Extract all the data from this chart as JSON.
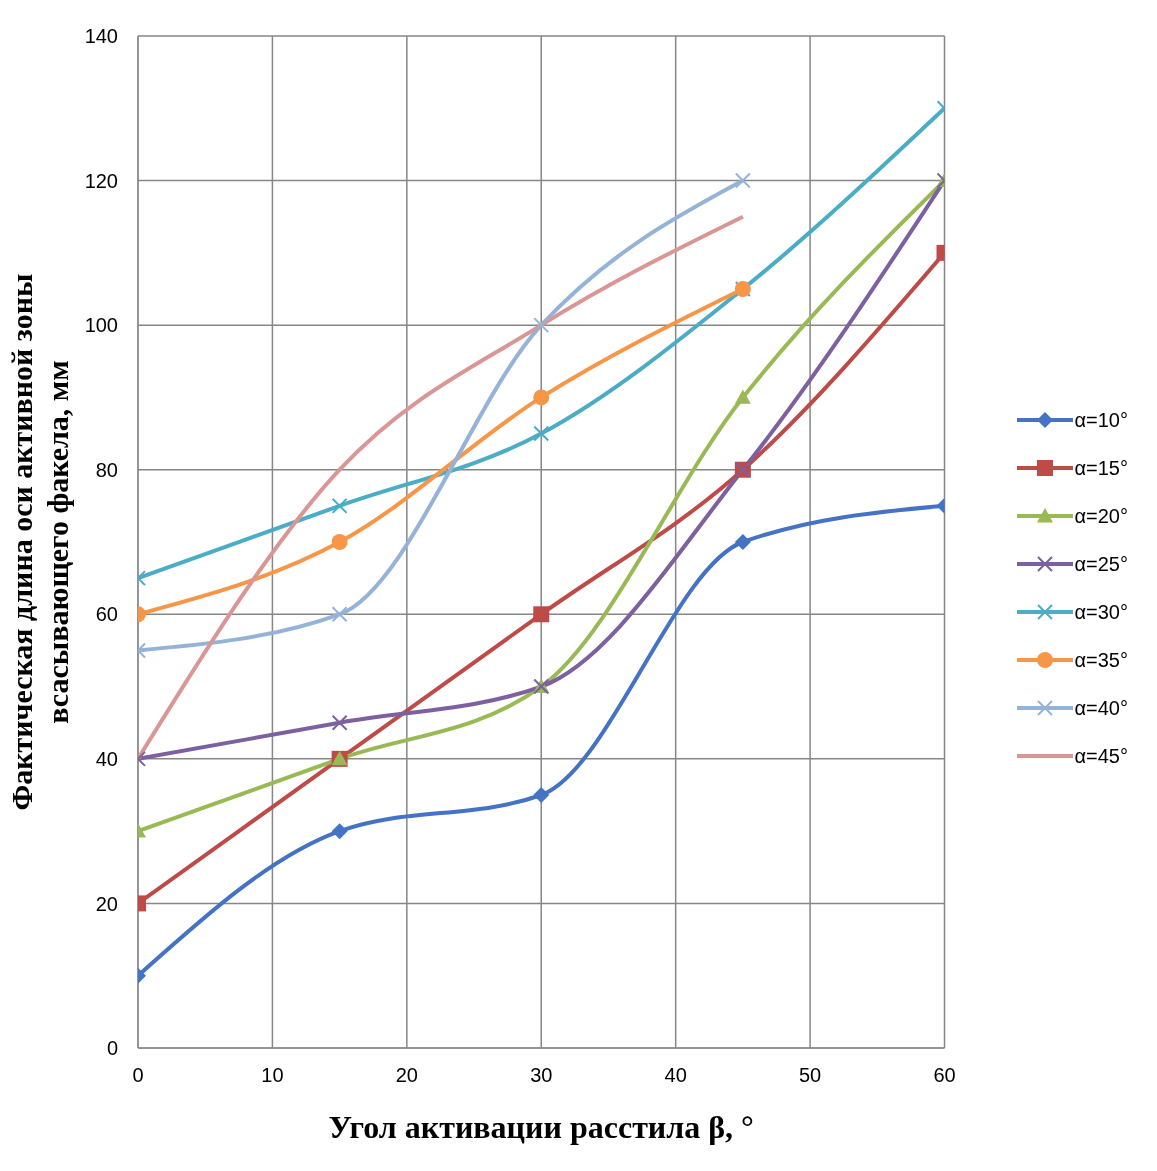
{
  "chart_data": {
    "type": "line",
    "xlabel": "Угол активации расстила β, °",
    "ylabel": "Фактическая длина оси активной зоны\nвсасывающего факела, мм",
    "x": [
      0,
      15,
      30,
      45,
      60
    ],
    "xlim": [
      0,
      60
    ],
    "xticks": [
      0,
      10,
      20,
      30,
      40,
      50,
      60
    ],
    "ylim": [
      0,
      140
    ],
    "yticks": [
      0,
      20,
      40,
      60,
      80,
      100,
      120,
      140
    ],
    "grid": true,
    "legend": "right",
    "series": [
      {
        "name": "α=10°",
        "color": "#4472c4",
        "marker": "diamond",
        "values": [
          10,
          30,
          35,
          70,
          75
        ]
      },
      {
        "name": "α=15°",
        "color": "#be4b48",
        "marker": "square",
        "values": [
          20,
          40,
          60,
          80,
          110
        ]
      },
      {
        "name": "α=20°",
        "color": "#98b954",
        "marker": "triangle",
        "values": [
          30,
          40,
          50,
          90,
          120
        ]
      },
      {
        "name": "α=25°",
        "color": "#7d60a0",
        "marker": "cross",
        "values": [
          40,
          45,
          50,
          80,
          120
        ]
      },
      {
        "name": "α=30°",
        "color": "#4bacc6",
        "marker": "cross",
        "values": [
          65,
          75,
          85,
          105,
          130
        ]
      },
      {
        "name": "α=35°",
        "color": "#f79646",
        "marker": "circle",
        "values": [
          60,
          70,
          90,
          105,
          null
        ]
      },
      {
        "name": "α=40°",
        "color": "#95b3d7",
        "marker": "cross",
        "values": [
          55,
          60,
          100,
          120,
          null
        ]
      },
      {
        "name": "α=45°",
        "color": "#d99694",
        "marker": "none",
        "values": [
          40,
          80,
          100,
          115,
          null
        ]
      }
    ]
  }
}
